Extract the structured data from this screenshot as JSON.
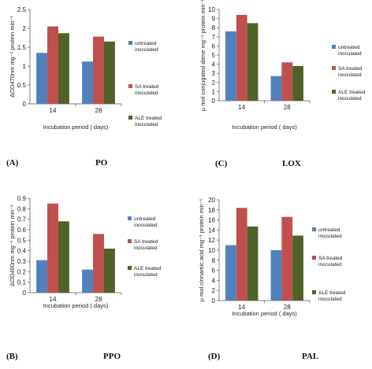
{
  "colors": {
    "untreated": "#4f81bd",
    "sa": "#c0504d",
    "ale": "#4f6228"
  },
  "chart_data": [
    {
      "type": "bar",
      "panel": "(A)",
      "name": "PO",
      "categories": [
        "14",
        "28"
      ],
      "series": [
        {
          "name": "untreated inoculated",
          "values": [
            1.35,
            1.12
          ]
        },
        {
          "name": "SA treated inoculated",
          "values": [
            2.05,
            1.78
          ]
        },
        {
          "name": "ALE treated inoculated",
          "values": [
            1.87,
            1.65
          ]
        }
      ],
      "ylim": [
        0,
        2.5
      ],
      "yticks": [
        "0",
        "0.5",
        "1",
        "1.5",
        "2",
        "2.5"
      ],
      "xlabel": "Incubation period ( days)",
      "ylabel": "ΔOD470nm mg⁻¹ protein min⁻¹",
      "legend_lines": [
        [
          "untreated",
          "inoculated"
        ],
        [
          "SA treated",
          "inoculated"
        ],
        [
          "ALE treated",
          "inoculated"
        ]
      ]
    },
    {
      "type": "bar",
      "panel": "(C)",
      "name": "LOX",
      "categories": [
        "14",
        "28"
      ],
      "series": [
        {
          "name": "untreated inoculated",
          "values": [
            7.6,
            2.7
          ]
        },
        {
          "name": "SA treated inoculated",
          "values": [
            9.4,
            4.2
          ]
        },
        {
          "name": "ALE treated inoculated",
          "values": [
            8.5,
            3.8
          ]
        }
      ],
      "ylim": [
        0,
        10
      ],
      "yticks": [
        "0",
        "1",
        "2",
        "3",
        "4",
        "5",
        "6",
        "7",
        "8",
        "9",
        "10"
      ],
      "xlabel": "Incubation period ( days)",
      "ylabel": "µ mol conjugated diene mg⁻¹ protein min⁻¹",
      "legend_lines": [
        [
          "untreated",
          "inoculated"
        ],
        [
          "SA treated",
          "inoculated"
        ],
        [
          "ALE treated",
          "inoculated"
        ]
      ]
    },
    {
      "type": "bar",
      "panel": "(B)",
      "name": "PPO",
      "categories": [
        "14",
        "28"
      ],
      "series": [
        {
          "name": "untreated inoculated",
          "values": [
            0.31,
            0.22
          ]
        },
        {
          "name": "SA treated inoculated",
          "values": [
            0.85,
            0.56
          ]
        },
        {
          "name": "ALE treated inoculated",
          "values": [
            0.68,
            0.42
          ]
        }
      ],
      "ylim": [
        0,
        0.9
      ],
      "yticks": [
        "0",
        "0.1",
        "0.2",
        "0.3",
        "0.4",
        "0.5",
        "0.6",
        "0.7",
        "0.8",
        "0.9"
      ],
      "xlabel": "Incubation period ( days)",
      "ylabel": "ΔOD490nm mg⁻¹ protein min⁻¹",
      "legend_lines": [
        [
          "untreated",
          "inoculated"
        ],
        [
          "SA treated",
          "inoculated"
        ],
        [
          "ALE treated",
          "inoculated"
        ]
      ]
    },
    {
      "type": "bar",
      "panel": "(D)",
      "name": "PAL",
      "categories": [
        "14",
        "28"
      ],
      "series": [
        {
          "name": "untreated inoculated",
          "values": [
            11.0,
            10.0
          ]
        },
        {
          "name": "SA treated inoculated",
          "values": [
            18.4,
            16.6
          ]
        },
        {
          "name": "ALE treated inoculated",
          "values": [
            14.7,
            12.9
          ]
        }
      ],
      "ylim": [
        0,
        20
      ],
      "yticks": [
        "0",
        "2",
        "4",
        "6",
        "8",
        "10",
        "12",
        "14",
        "16",
        "18",
        "20"
      ],
      "xlabel": "Incubation period ( days)",
      "ylabel": "µ mol cinnamic acid mg⁻¹ protein min⁻¹",
      "legend_lines": [
        [
          "untreated",
          "inoculated"
        ],
        [
          "SA treated",
          "inoculated"
        ],
        [
          "ALE treated",
          "inoculated"
        ]
      ]
    }
  ]
}
